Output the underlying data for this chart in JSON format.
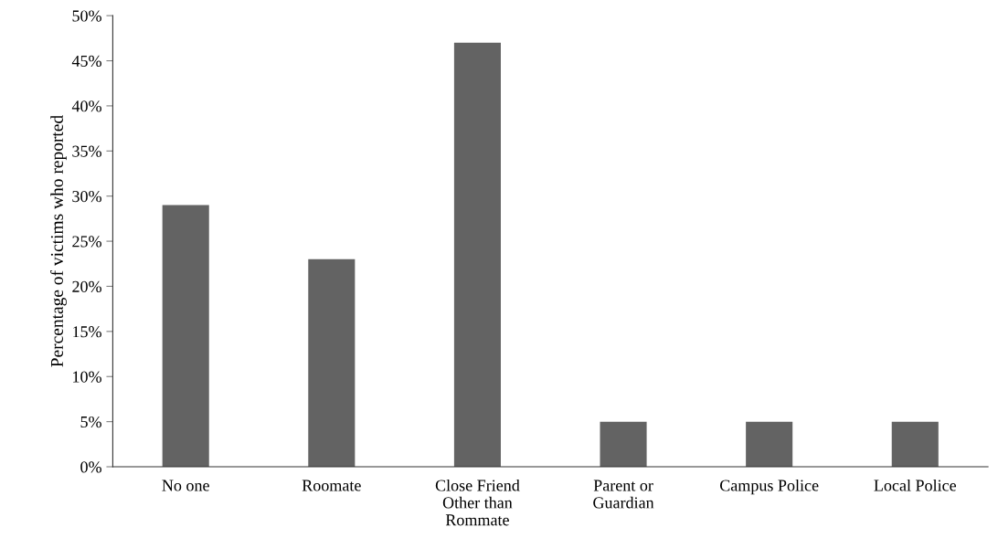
{
  "chart_data": {
    "type": "bar",
    "ylabel": "Percentage of victims who reported",
    "categories": [
      "No one",
      "Roomate",
      "Close Friend\nOther than\nRommate",
      "Parent or\nGuardian",
      "Campus Police",
      "Local Police"
    ],
    "values": [
      29,
      23,
      47,
      5,
      5,
      5
    ],
    "color": "#636363",
    "ylim": [
      0,
      50
    ],
    "yticks": [
      {
        "value": 0,
        "label": "0%"
      },
      {
        "value": 5,
        "label": "5%"
      },
      {
        "value": 10,
        "label": "10%"
      },
      {
        "value": 15,
        "label": "15%"
      },
      {
        "value": 20,
        "label": "20%"
      },
      {
        "value": 25,
        "label": "25%"
      },
      {
        "value": 30,
        "label": "30%"
      },
      {
        "value": 35,
        "label": "35%"
      },
      {
        "value": 40,
        "label": "40%"
      },
      {
        "value": 45,
        "label": "45%"
      },
      {
        "value": 50,
        "label": "50%"
      }
    ],
    "grid": false,
    "legend": false
  }
}
